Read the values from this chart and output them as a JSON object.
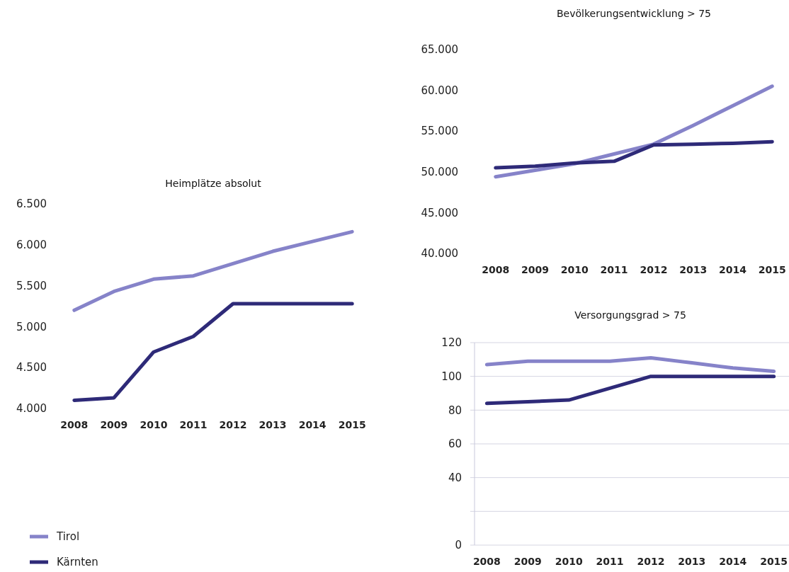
{
  "chart_data": [
    {
      "type": "line",
      "title": "Heimplätze absolut",
      "categories": [
        "2008",
        "2009",
        "2010",
        "2011",
        "2012",
        "2013",
        "2014",
        "2015"
      ],
      "ylim": [
        4000,
        6500
      ],
      "yticks": [
        {
          "value": 4000,
          "label": "4.000"
        },
        {
          "value": 4500,
          "label": "4.500"
        },
        {
          "value": 5000,
          "label": "5.000"
        },
        {
          "value": 5500,
          "label": "5.500"
        },
        {
          "value": 6000,
          "label": "6.000"
        },
        {
          "value": 6500,
          "label": "6.500"
        }
      ],
      "legend": "bottom left",
      "series": [
        {
          "name": "Tirol",
          "color": "#8683c9",
          "values": [
            5200,
            5430,
            5580,
            5620,
            5770,
            5920,
            6040,
            6160
          ]
        },
        {
          "name": "Kärnten",
          "color": "#2e2a78",
          "values": [
            4100,
            4130,
            4690,
            4880,
            5280,
            5280,
            5280,
            5280
          ]
        }
      ]
    },
    {
      "type": "line",
      "title": "Bevölkerungsentwicklung > 75",
      "categories": [
        "2008",
        "2009",
        "2010",
        "2011",
        "2012",
        "2013",
        "2014",
        "2015"
      ],
      "ylim": [
        40000,
        65000
      ],
      "yticks": [
        {
          "value": 40000,
          "label": "40.000"
        },
        {
          "value": 45000,
          "label": "45.000"
        },
        {
          "value": 50000,
          "label": "50.000"
        },
        {
          "value": 55000,
          "label": "55.000"
        },
        {
          "value": 60000,
          "label": "60.000"
        },
        {
          "value": 65000,
          "label": "65.000"
        }
      ],
      "series": [
        {
          "color": "#8683c9",
          "values": [
            49400,
            50200,
            51000,
            52200,
            53400,
            55700,
            58100,
            60500
          ]
        },
        {
          "color": "#2e2a78",
          "values": [
            50500,
            50700,
            51100,
            51300,
            53300,
            53400,
            53500,
            53700
          ]
        }
      ]
    },
    {
      "type": "line",
      "title": "Versorgungsgrad > 75",
      "categories": [
        "2008",
        "2009",
        "2010",
        "2011",
        "2012",
        "2013",
        "2014",
        "2015"
      ],
      "ylim": [
        0,
        120
      ],
      "yticks": [
        0,
        {
          "value": 20,
          "label": null
        },
        40,
        60,
        80,
        100,
        120
      ],
      "grid": "y",
      "series": [
        {
          "color": "#8683c9",
          "values": [
            107,
            109,
            109,
            109,
            111,
            108,
            105,
            103
          ]
        },
        {
          "color": "#2e2a78",
          "values": [
            84,
            85,
            86,
            93,
            100,
            100,
            100,
            100
          ]
        }
      ]
    }
  ]
}
